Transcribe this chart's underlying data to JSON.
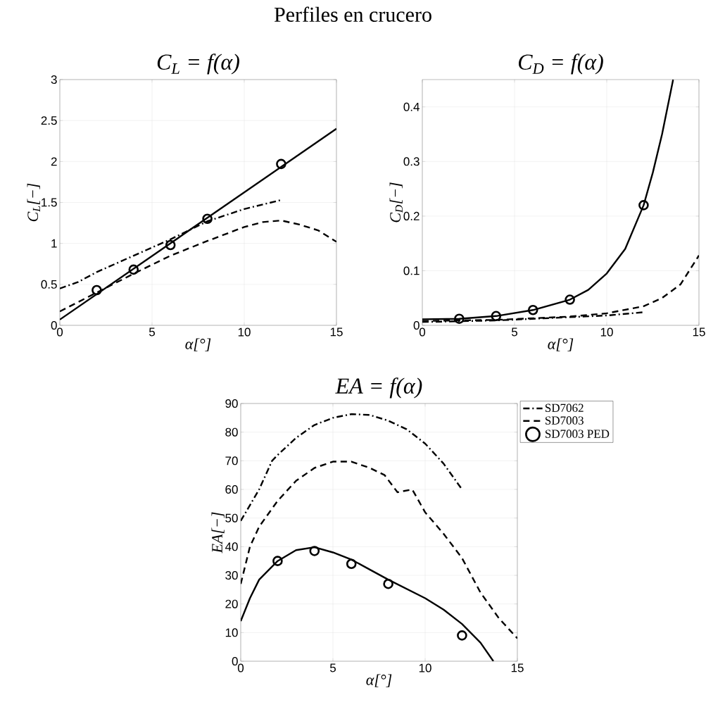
{
  "chart_data": [
    {
      "type": "line",
      "title": "C$_{L}$ = f(α)",
      "xlabel": "α[°]",
      "ylabel": "C$_{L}$[−]",
      "annotations": [
        "Perfiles en crucero"
      ],
      "xlim": [
        0,
        15
      ],
      "ylim": [
        0,
        3
      ],
      "xticks": [
        0,
        5,
        10,
        15
      ],
      "yticks": [
        0,
        0.5,
        1,
        1.5,
        2,
        2.5,
        3
      ],
      "grid": true,
      "series": [
        {
          "type": "line",
          "color": "#000000",
          "line_style": "dashdot",
          "x": [
            0,
            1,
            2,
            4,
            6,
            8,
            10,
            12
          ],
          "values": [
            0.45,
            0.53,
            0.65,
            0.85,
            1.05,
            1.27,
            1.42,
            1.53
          ]
        },
        {
          "type": "line",
          "color": "#000000",
          "line_style": "dashed",
          "x": [
            0,
            2,
            4,
            6,
            8,
            10,
            11,
            12,
            13,
            14,
            15
          ],
          "values": [
            0.17,
            0.4,
            0.63,
            0.85,
            1.03,
            1.2,
            1.26,
            1.28,
            1.23,
            1.16,
            1.02
          ]
        },
        {
          "type": "scatter",
          "color": "#000000",
          "marker": "circle",
          "x": [
            2,
            4,
            6,
            8,
            12
          ],
          "values": [
            0.43,
            0.68,
            0.98,
            1.3,
            1.97
          ]
        },
        {
          "type": "line",
          "color": "#000000",
          "line_style": "solid",
          "x": [
            0,
            15
          ],
          "values": [
            0.07,
            2.4
          ]
        }
      ]
    },
    {
      "type": "line",
      "title": "C$_{D}$ = f(α)",
      "xlabel": "α[°]",
      "ylabel": "C$_{D}$[−]",
      "xlim": [
        0,
        15
      ],
      "ylim": [
        0,
        0.45
      ],
      "xticks": [
        0,
        5,
        10,
        15
      ],
      "yticks": [
        0,
        0.1,
        0.2,
        0.3,
        0.4
      ],
      "grid": true,
      "series": [
        {
          "type": "line",
          "color": "#000000",
          "line_style": "dashdot",
          "x": [
            0,
            4,
            8,
            10,
            12
          ],
          "values": [
            0.006,
            0.009,
            0.015,
            0.018,
            0.024
          ]
        },
        {
          "type": "line",
          "color": "#000000",
          "line_style": "dashed",
          "x": [
            0,
            4,
            8,
            10,
            12,
            13,
            14,
            15
          ],
          "values": [
            0.008,
            0.01,
            0.016,
            0.022,
            0.035,
            0.05,
            0.075,
            0.128
          ]
        },
        {
          "type": "scatter",
          "color": "#000000",
          "marker": "circle",
          "x": [
            2,
            4,
            6,
            8,
            12
          ],
          "values": [
            0.012,
            0.017,
            0.028,
            0.047,
            0.22
          ]
        },
        {
          "type": "line",
          "color": "#000000",
          "line_style": "solid",
          "x": [
            0,
            2,
            4,
            6,
            8,
            9,
            10,
            11,
            12,
            12.5,
            13,
            13.6
          ],
          "values": [
            0.011,
            0.012,
            0.017,
            0.028,
            0.047,
            0.065,
            0.095,
            0.14,
            0.22,
            0.28,
            0.35,
            0.45
          ]
        }
      ]
    },
    {
      "type": "line",
      "title": "EA = f(α)",
      "xlabel": "α[°]",
      "ylabel": "EA[−]",
      "xlim": [
        0,
        15
      ],
      "ylim": [
        0,
        90
      ],
      "xticks": [
        0,
        5,
        10,
        15
      ],
      "yticks": [
        0,
        10,
        20,
        30,
        40,
        50,
        60,
        70,
        80,
        90
      ],
      "grid": true,
      "legend": "top right",
      "series": [
        {
          "type": "line",
          "name": "SD7062",
          "color": "#000000",
          "line_style": "dashdot",
          "x": [
            0,
            1,
            1.7,
            2,
            3,
            4,
            5,
            6,
            7,
            8,
            9,
            10,
            11,
            12
          ],
          "values": [
            49,
            60,
            70,
            72,
            78,
            82.5,
            85,
            86.3,
            86,
            84,
            81,
            76,
            69,
            60
          ]
        },
        {
          "type": "line",
          "name": "SD7003",
          "color": "#000000",
          "line_style": "dashed",
          "x": [
            0,
            0.5,
            1,
            2,
            3,
            4,
            5,
            6,
            7,
            7.8,
            8.5,
            9.3,
            10,
            11,
            12,
            13,
            14,
            15
          ],
          "values": [
            27,
            40,
            47,
            56,
            63,
            67.5,
            69.7,
            69.7,
            67.5,
            65,
            59,
            60,
            52,
            44.5,
            36,
            24,
            15,
            8
          ]
        },
        {
          "type": "scatter",
          "name": "SD7003 PED",
          "color": "#000000",
          "marker": "circle",
          "x": [
            2,
            4,
            6,
            8,
            12
          ],
          "values": [
            35,
            38.5,
            34,
            27,
            9
          ]
        },
        {
          "type": "line",
          "color": "#000000",
          "line_style": "solid",
          "x": [
            0,
            0.5,
            1,
            2,
            3,
            4,
            5,
            6,
            7,
            8,
            10,
            11,
            12,
            13,
            13.7
          ],
          "values": [
            14,
            22,
            28.5,
            35,
            38.8,
            39.8,
            38,
            35.5,
            32,
            28.5,
            22,
            18,
            13,
            6.5,
            0
          ]
        }
      ]
    }
  ]
}
